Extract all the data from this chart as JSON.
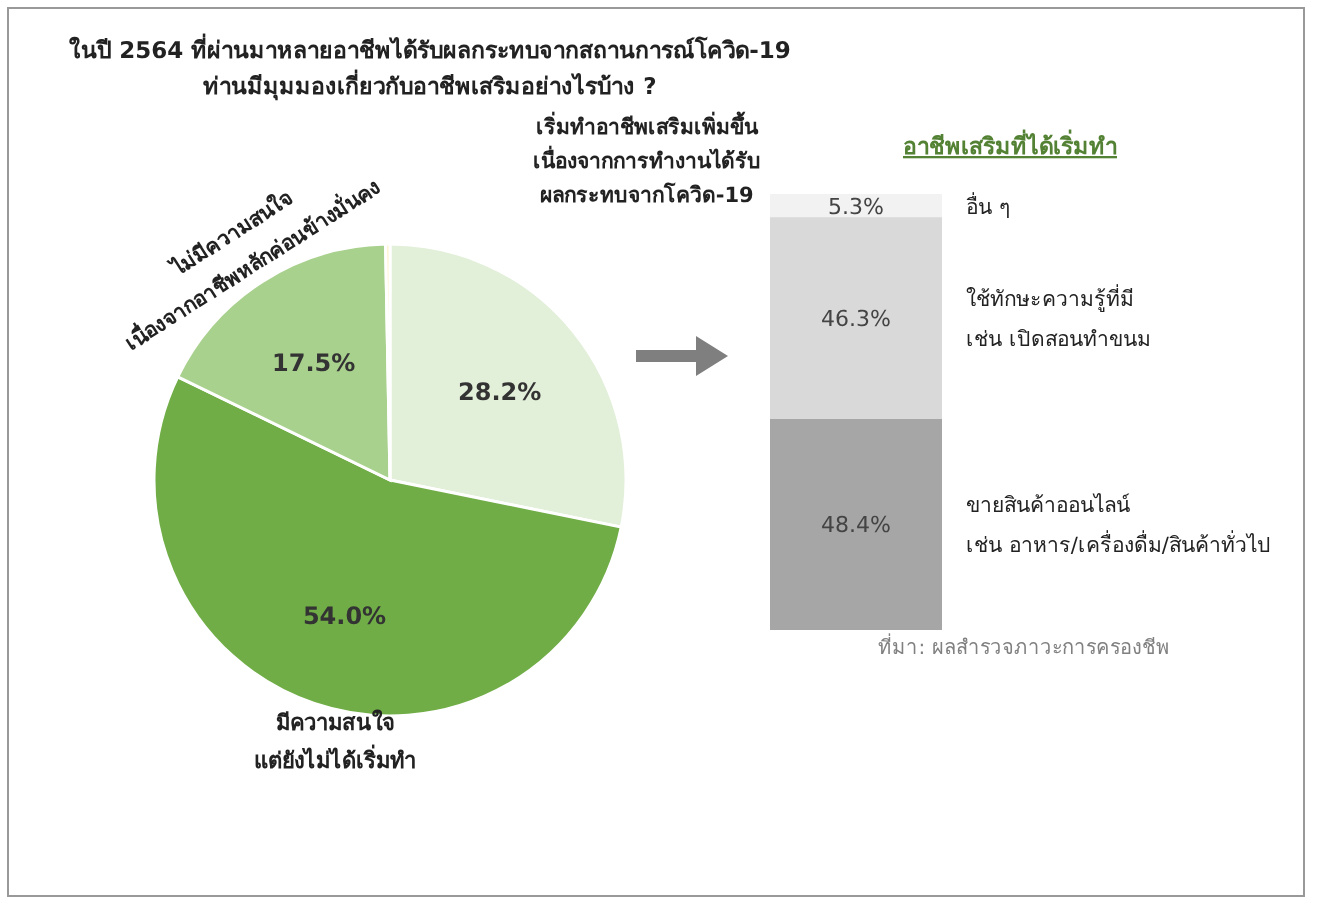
{
  "chart_data": [
    {
      "type": "pie",
      "title": "ในปี 2564 ที่ผ่านมาหลายอาชีพได้รับผลกระทบจากสถานการณ์โควิด-19\nท่านมีมุมมองเกี่ยวกับอาชีพเสริมอย่างไรบ้าง ?",
      "categories": [
        "เริ่มทำอาชีพเสริมเพิ่มขึ้น\nเนื่องจากการทำงานได้รับ\nผลกระทบจากโควิด-19",
        "มีความสนใจ\nแต่ยังไม่ได้เริ่มทำ",
        "ไม่มีความสนใจ\nเนื่องจากอาชีพหลักค่อนข้างมั่นคง",
        null
      ],
      "values": [
        28.2,
        54.0,
        17.5,
        0.3
      ],
      "value_labels": [
        "28.2%",
        "54.0%",
        "17.5%",
        null
      ],
      "colors": [
        "#e2efd9",
        "#70ad47",
        "#a9d18e",
        "#fff2cc"
      ]
    },
    {
      "type": "bar",
      "stacked": true,
      "title": "อาชีพเสริมที่ได้เริ่มทำ",
      "categories": [
        null
      ],
      "series": [
        {
          "name": "ขายสินค้าออนไลน์\nเช่น อาหาร/เครื่องดื่ม/สินค้าทั่วไป",
          "color": "#a6a6a6",
          "values": [
            48.4
          ],
          "value_labels": [
            "48.4%"
          ]
        },
        {
          "name": "ใช้ทักษะความรู้ที่มี\nเช่น เปิดสอนทำขนม",
          "color": "#d9d9d9",
          "values": [
            46.3
          ],
          "value_labels": [
            "46.3%"
          ]
        },
        {
          "name": "อื่น ๆ",
          "color": "#f2f2f2",
          "values": [
            5.3
          ],
          "value_labels": [
            "5.3%"
          ]
        }
      ],
      "annotations": [
        "ที่มา: ผลสำรวจภาวะการครองชีพ"
      ]
    }
  ]
}
